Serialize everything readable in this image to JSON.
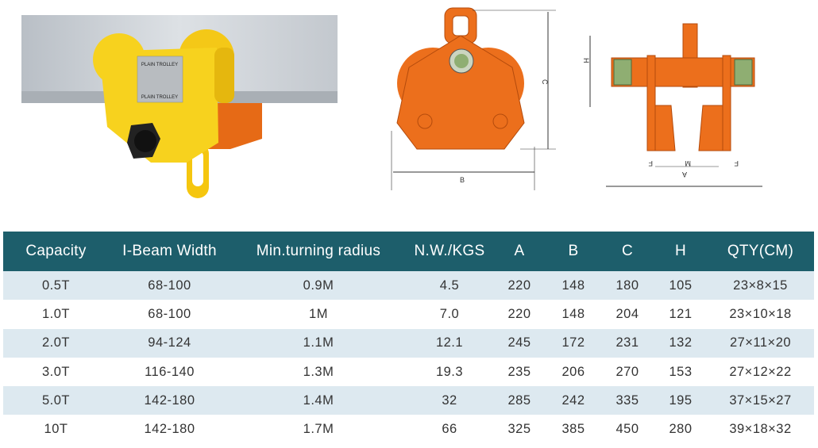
{
  "product_photo": {
    "plate_text": [
      "PLAIN TROLLEY",
      "PLAIN TROLLEY"
    ]
  },
  "front_diagram": {
    "labels": {
      "height": "C",
      "width": "B"
    }
  },
  "side_diagram": {
    "labels": {
      "height": "H",
      "flange_left": "F",
      "gap": "M",
      "flange_right": "F",
      "overall": "A"
    }
  },
  "colors": {
    "header": "#1d5e6b",
    "stripe": "#dde9f0",
    "trolley_yellow": "#f7d21e",
    "diagram_orange": "#ec6f1c"
  },
  "table": {
    "headers": [
      "Capacity",
      "I-Beam Width",
      "Min.turning radius",
      "N.W./KGS",
      "A",
      "B",
      "C",
      "H",
      "QTY(CM)"
    ],
    "rows": [
      [
        "0.5T",
        "68-100",
        "0.9M",
        "4.5",
        "220",
        "148",
        "180",
        "105",
        "23×8×15"
      ],
      [
        "1.0T",
        "68-100",
        "1M",
        "7.0",
        "220",
        "148",
        "204",
        "121",
        "23×10×18"
      ],
      [
        "2.0T",
        "94-124",
        "1.1M",
        "12.1",
        "245",
        "172",
        "231",
        "132",
        "27×11×20"
      ],
      [
        "3.0T",
        "116-140",
        "1.3M",
        "19.3",
        "235",
        "206",
        "270",
        "153",
        "27×12×22"
      ],
      [
        "5.0T",
        "142-180",
        "1.4M",
        "32",
        "285",
        "242",
        "335",
        "195",
        "37×15×27"
      ],
      [
        "10T",
        "142-180",
        "1.7M",
        "66",
        "325",
        "385",
        "450",
        "280",
        "39×18×32"
      ]
    ]
  }
}
